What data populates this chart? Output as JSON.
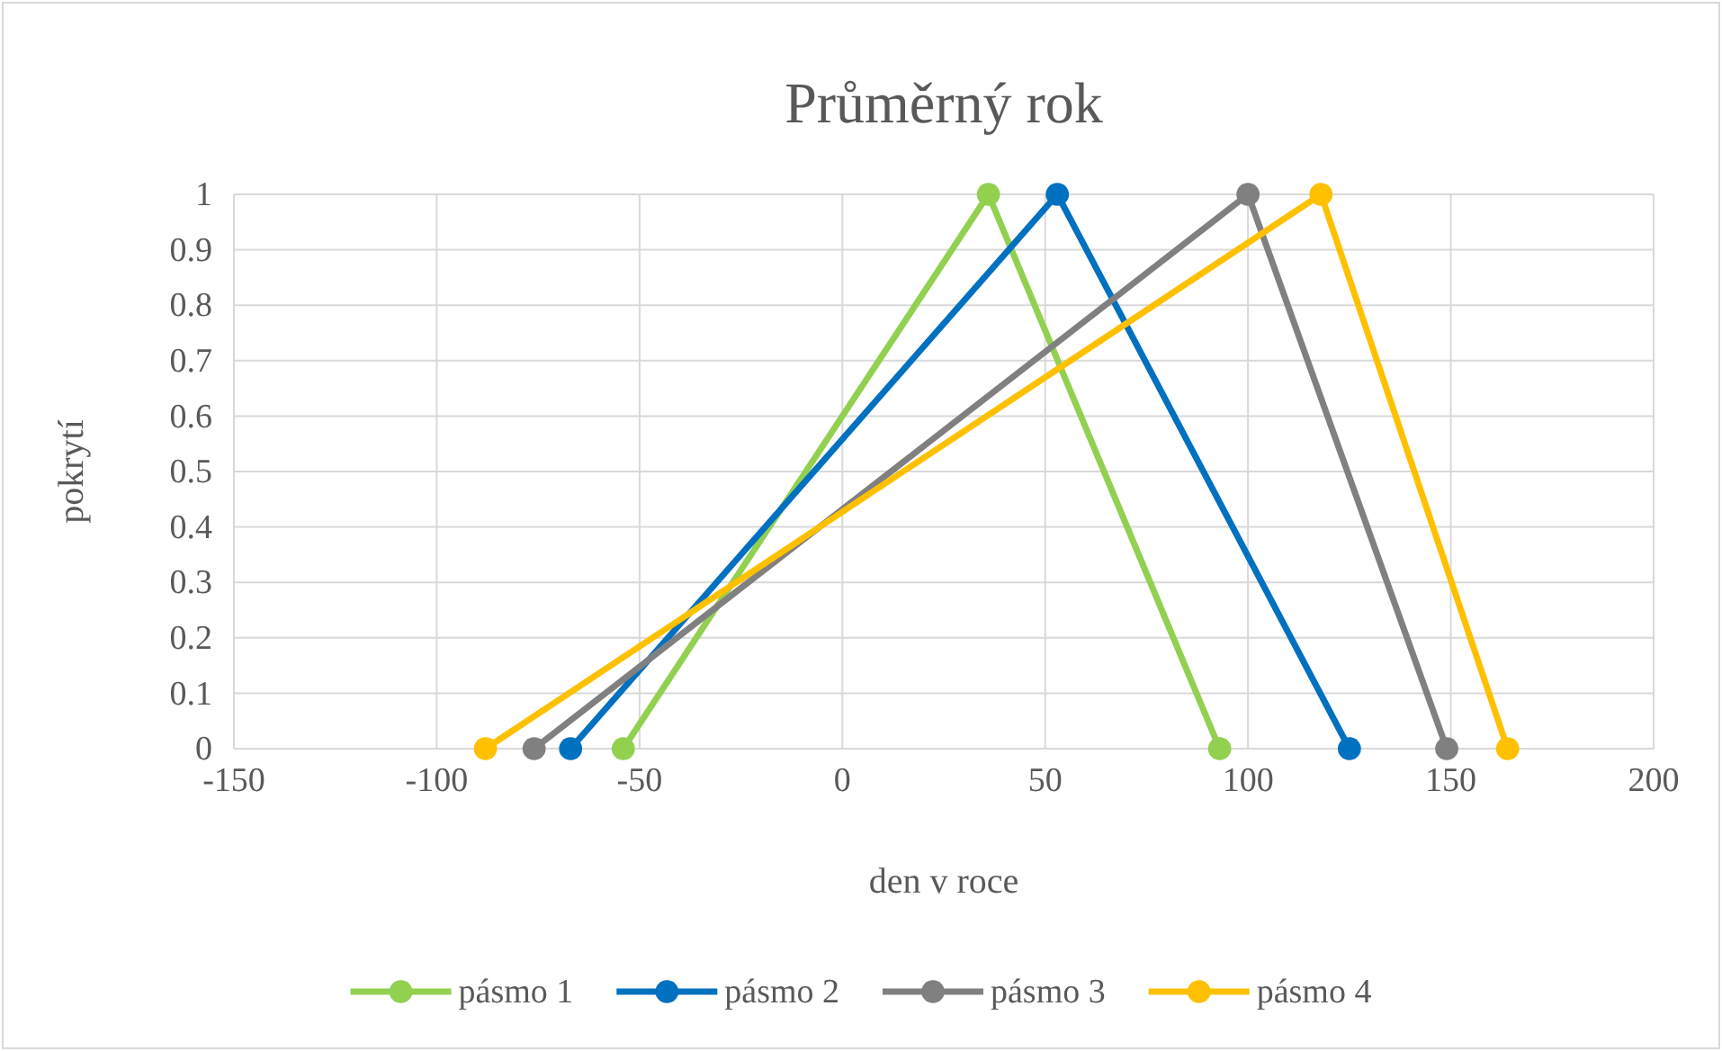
{
  "chart_data": {
    "type": "line",
    "title": "Průměrný rok",
    "xlabel": "den v roce",
    "ylabel": "pokrytí",
    "xlim": [
      -150,
      200
    ],
    "xticks": [
      -150,
      -100,
      -50,
      0,
      50,
      100,
      150,
      200
    ],
    "ylim": [
      0,
      1
    ],
    "yticks": [
      0,
      0.1,
      0.2,
      0.3,
      0.4,
      0.5,
      0.6,
      0.7,
      0.8,
      0.9,
      1
    ],
    "grid": true,
    "legend": "bottom",
    "marker": "circle",
    "line_style": "solid",
    "series": [
      {
        "name": "pásmo 1",
        "color": "#92d050",
        "x": [
          -54,
          36,
          93
        ],
        "values": [
          0,
          1,
          0
        ]
      },
      {
        "name": "pásmo 2",
        "color": "#0070c0",
        "x": [
          -67,
          53,
          125
        ],
        "values": [
          0,
          1,
          0
        ]
      },
      {
        "name": "pásmo 3",
        "color": "#808080",
        "x": [
          -76,
          100,
          149
        ],
        "values": [
          0,
          1,
          0
        ]
      },
      {
        "name": "pásmo 4",
        "color": "#ffc000",
        "x": [
          -88,
          118,
          164
        ],
        "values": [
          0,
          1,
          0
        ]
      }
    ]
  }
}
